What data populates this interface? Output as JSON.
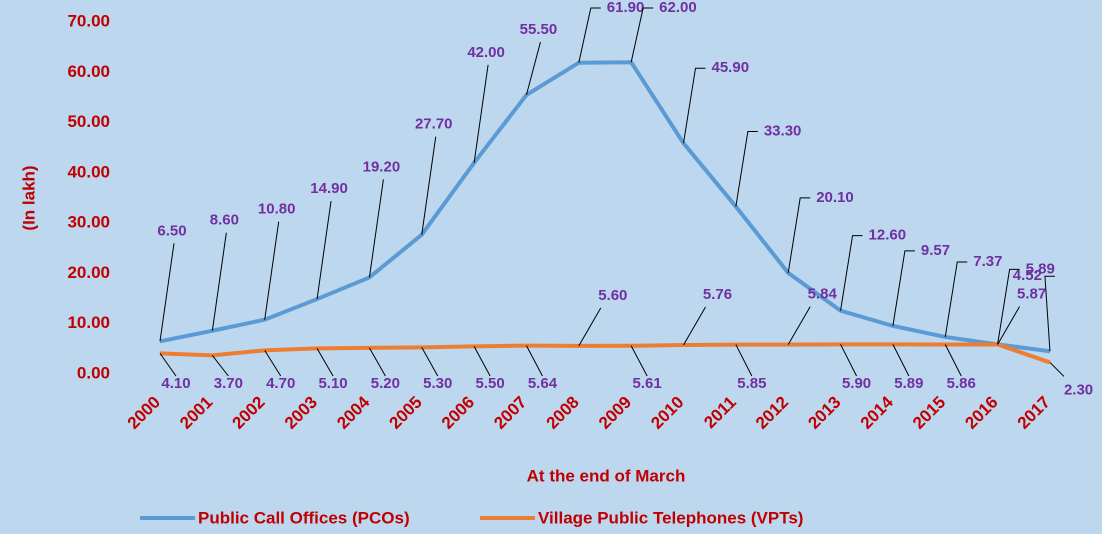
{
  "chart_data": {
    "type": "line",
    "x_label": "At the end of March",
    "y_label": "(In lakh)",
    "categories": [
      "2000",
      "2001",
      "2002",
      "2003",
      "2004",
      "2005",
      "2006",
      "2007",
      "2008",
      "2009",
      "2010",
      "2011",
      "2012",
      "2013",
      "2014",
      "2015",
      "2016",
      "2017"
    ],
    "ylim": [
      0,
      70
    ],
    "yticks": [
      {
        "value": 0,
        "label": "0.00"
      },
      {
        "value": 10,
        "label": "10.00"
      },
      {
        "value": 20,
        "label": "20.00"
      },
      {
        "value": 30,
        "label": "30.00"
      },
      {
        "value": 40,
        "label": "40.00"
      },
      {
        "value": 50,
        "label": "50.00"
      },
      {
        "value": 60,
        "label": "60.00"
      },
      {
        "value": 70,
        "label": "70.00"
      }
    ],
    "legend": "bottom",
    "series": [
      {
        "name": "Public Call Offices (PCOs)",
        "color": "#5b9bd5",
        "values": [
          6.5,
          8.6,
          10.8,
          14.9,
          19.2,
          27.7,
          42.0,
          55.5,
          61.9,
          62.0,
          45.9,
          33.3,
          20.1,
          12.6,
          9.57,
          7.37,
          5.89,
          4.52
        ],
        "value_labels": [
          "6.50",
          "8.60",
          "10.80",
          "14.90",
          "19.20",
          "27.70",
          "42.00",
          "55.50",
          "61.90",
          "62.00",
          "45.90",
          "33.30",
          "20.10",
          "12.60",
          "9.57",
          "7.37",
          "5.89",
          "4.52"
        ]
      },
      {
        "name": "Village Public Telephones (VPTs)",
        "color": "#ed7d31",
        "values": [
          4.1,
          3.7,
          4.7,
          5.1,
          5.2,
          5.3,
          5.5,
          5.64,
          5.6,
          5.61,
          5.76,
          5.85,
          5.84,
          5.9,
          5.89,
          5.86,
          5.87,
          2.3
        ],
        "value_labels": [
          "4.10",
          "3.70",
          "4.70",
          "5.10",
          "5.20",
          "5.30",
          "5.50",
          "5.64",
          "5.60",
          "5.61",
          "5.76",
          "5.85",
          "5.84",
          "5.90",
          "5.89",
          "5.86",
          "5.87",
          "2.30"
        ]
      }
    ]
  }
}
